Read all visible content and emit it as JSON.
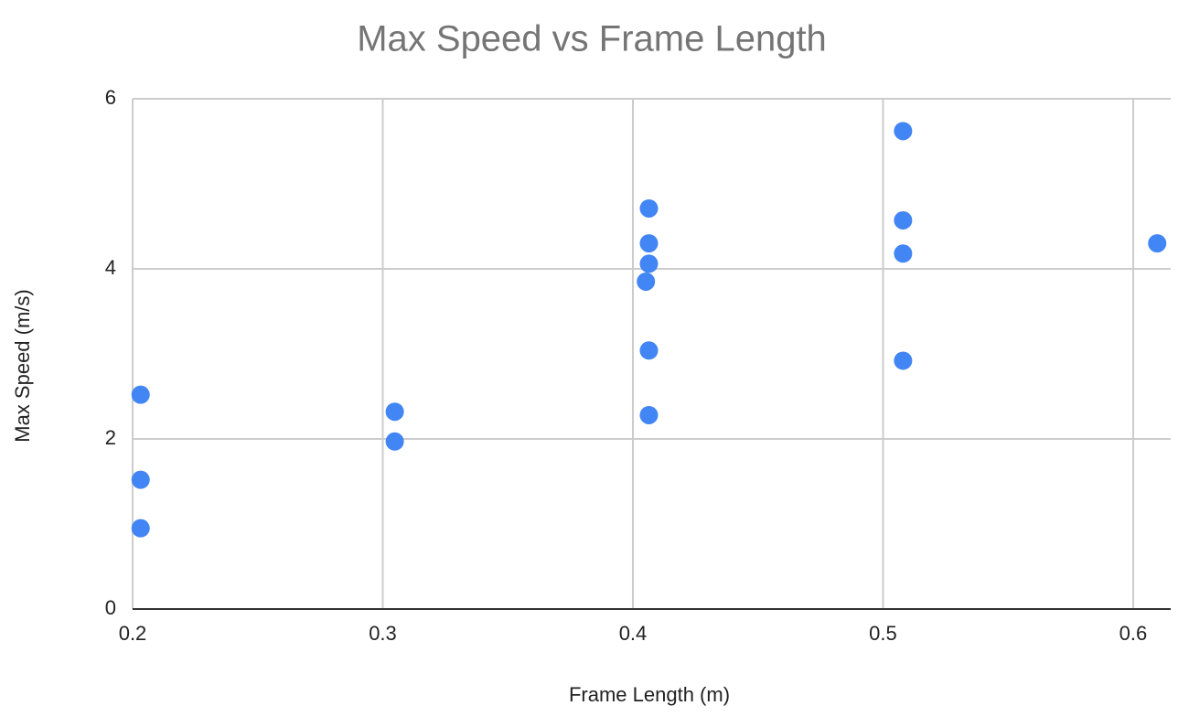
{
  "chart_data": {
    "type": "scatter",
    "title": "Max Speed vs Frame Length",
    "x_label": "Frame Length (m)",
    "y_label": "Max Speed (m/s)",
    "series": [
      {
        "name": "Max Speed (m/s)",
        "color": "#4285f4",
        "x": [
          0.2032,
          0.2032,
          0.2032,
          0.3048,
          0.3048,
          0.4064,
          0.4064,
          0.4064,
          0.4052,
          0.4064,
          0.4064,
          0.508,
          0.508,
          0.508,
          0.508,
          0.6096
        ],
        "values": [
          2.52,
          1.52,
          0.95,
          2.32,
          1.97,
          4.71,
          4.3,
          4.06,
          3.85,
          3.04,
          2.28,
          5.62,
          4.57,
          4.18,
          2.92,
          4.3
        ]
      }
    ],
    "xlim": [
      0.2,
      0.615
    ],
    "xticks": [
      0.2,
      0.3,
      0.4,
      0.5,
      0.6
    ],
    "ylim": [
      0,
      6
    ],
    "yticks": [
      0,
      2,
      4,
      6
    ],
    "grid": true
  }
}
